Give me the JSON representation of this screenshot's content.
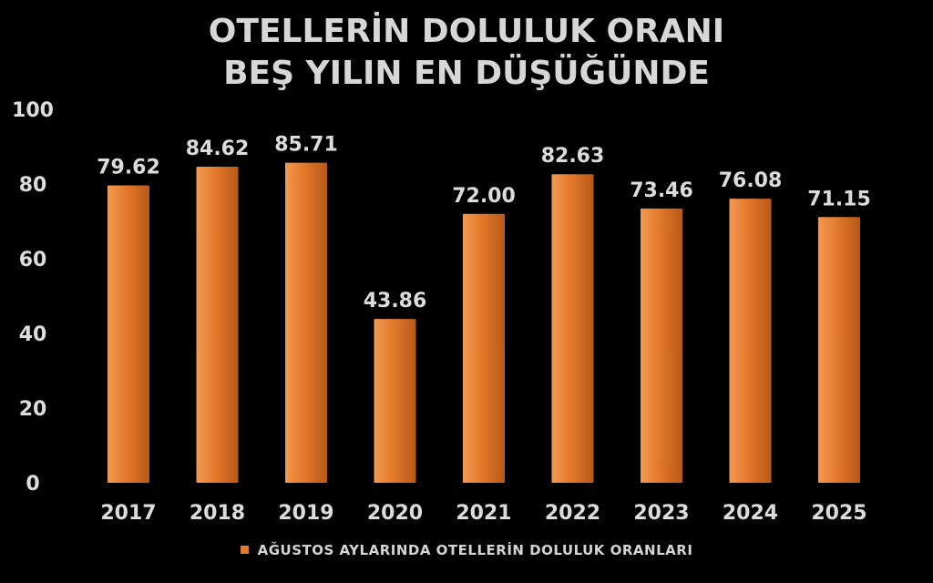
{
  "colors": {
    "background": "#000000",
    "bar": "#e3782b",
    "bar_light": "#f29a52",
    "bar_dark": "#b85918",
    "text": "#dcdcdc"
  },
  "chart_data": {
    "type": "bar",
    "title_lines": [
      "OTELLERİN DOLULUK ORANI",
      "BEŞ YILIN EN DÜŞÜĞÜNDE"
    ],
    "categories": [
      "2017",
      "2018",
      "2019",
      "2020",
      "2021",
      "2022",
      "2023",
      "2024",
      "2025"
    ],
    "values": [
      79.62,
      84.62,
      85.71,
      43.86,
      72.0,
      82.63,
      73.46,
      76.08,
      71.15
    ],
    "value_labels": [
      "79.62",
      "84.62",
      "85.71",
      "43.86",
      "72.00",
      "82.63",
      "73.46",
      "76.08",
      "71.15"
    ],
    "yticks": [
      "0",
      "20",
      "40",
      "60",
      "80",
      "100"
    ],
    "ylim": [
      0,
      100
    ],
    "legend": "AĞUSTOS AYLARINDA OTELLERİN DOLULUK ORANLARI",
    "legend_position": "bottom",
    "grid": false,
    "xlabel": "",
    "ylabel": ""
  }
}
